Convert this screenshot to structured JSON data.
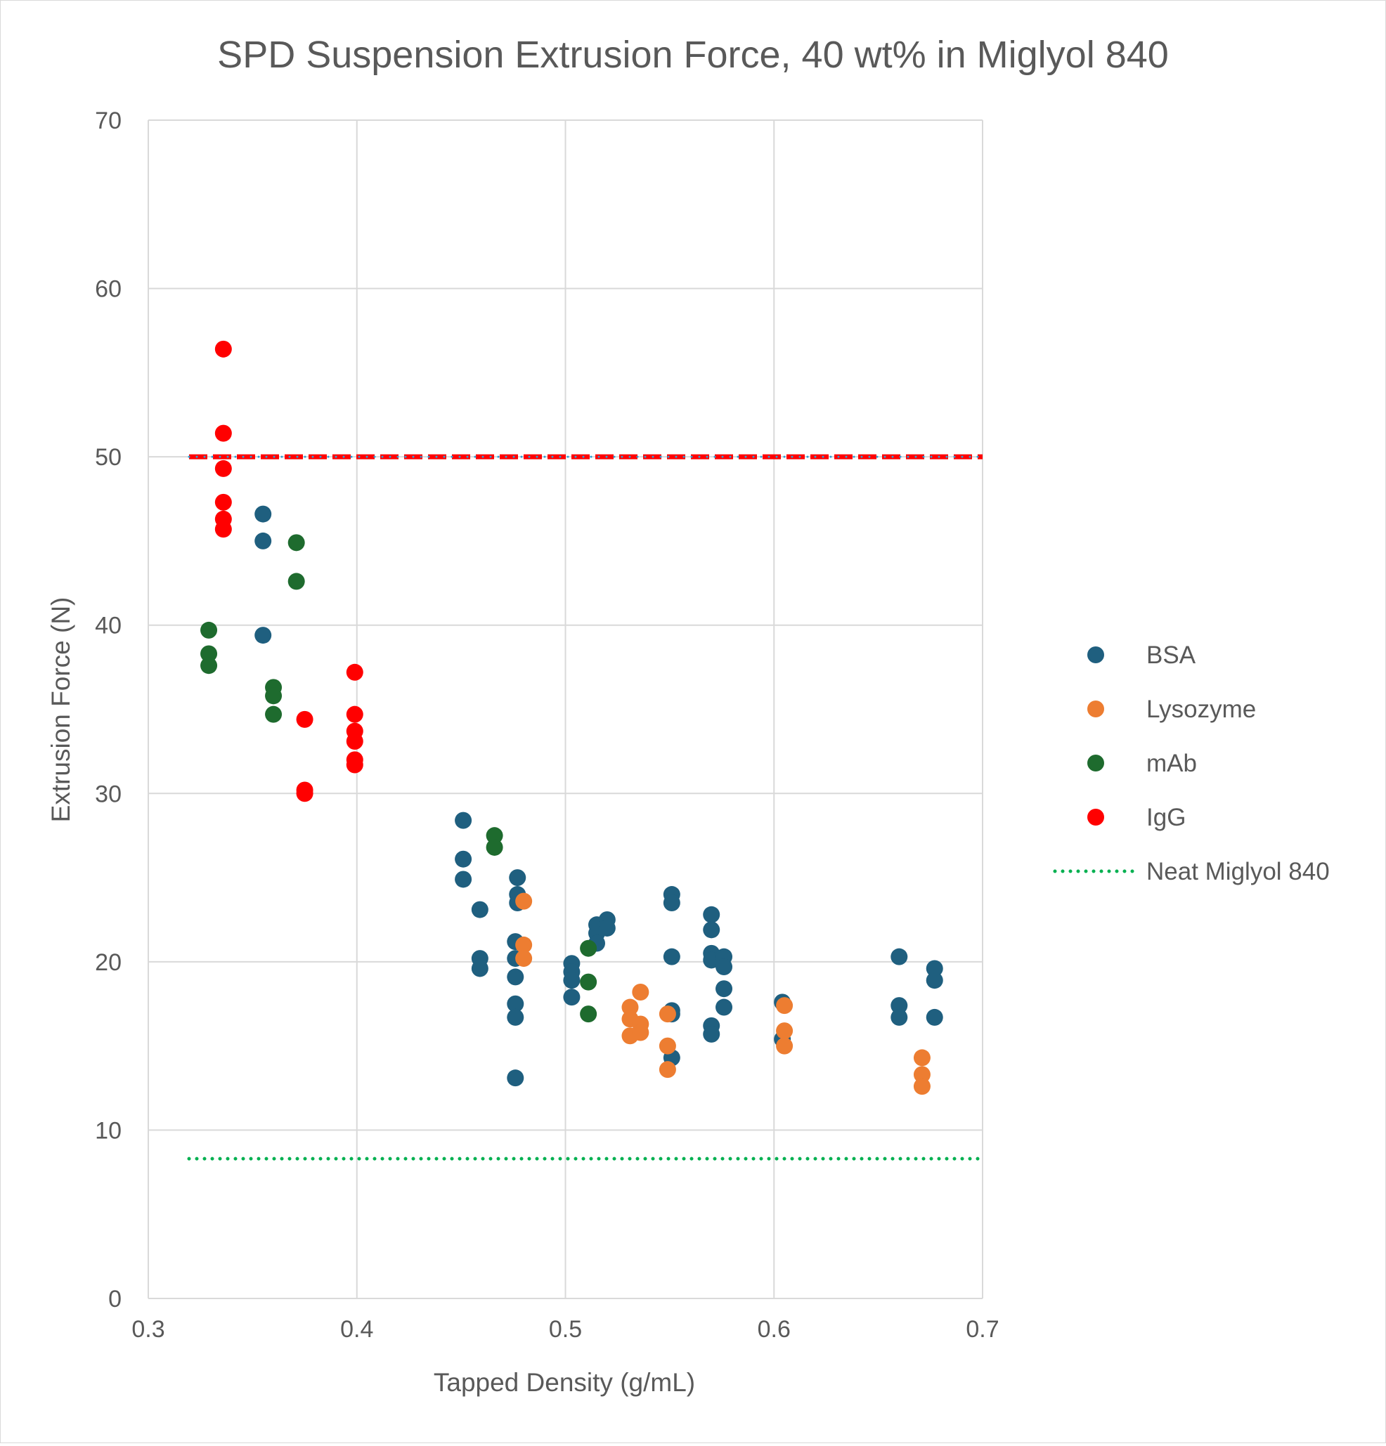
{
  "chart_data": {
    "type": "scatter",
    "title": "SPD Suspension Extrusion Force, 40 wt% in Miglyol 840",
    "xlabel": "Tapped Density (g/mL)",
    "ylabel": "Extrusion Force (N)",
    "xlim": [
      0.3,
      0.7
    ],
    "ylim": [
      0,
      70
    ],
    "xticks": [
      "0.3",
      "0.4",
      "0.5",
      "0.6",
      "0.7"
    ],
    "yticks": [
      "0",
      "10",
      "20",
      "30",
      "40",
      "50",
      "60",
      "70"
    ],
    "grid": true,
    "legend_position": "right",
    "series": [
      {
        "name": "BSA",
        "color": "#1f5f7f",
        "points": [
          [
            0.355,
            46.6
          ],
          [
            0.355,
            45.0
          ],
          [
            0.355,
            39.4
          ],
          [
            0.451,
            28.4
          ],
          [
            0.451,
            26.1
          ],
          [
            0.451,
            24.9
          ],
          [
            0.459,
            23.1
          ],
          [
            0.459,
            20.2
          ],
          [
            0.459,
            19.6
          ],
          [
            0.477,
            25.0
          ],
          [
            0.477,
            24.0
          ],
          [
            0.477,
            23.5
          ],
          [
            0.476,
            21.2
          ],
          [
            0.476,
            20.2
          ],
          [
            0.476,
            19.1
          ],
          [
            0.476,
            17.5
          ],
          [
            0.476,
            16.7
          ],
          [
            0.476,
            13.1
          ],
          [
            0.503,
            19.9
          ],
          [
            0.503,
            19.4
          ],
          [
            0.503,
            18.9
          ],
          [
            0.503,
            17.9
          ],
          [
            0.515,
            22.2
          ],
          [
            0.515,
            21.7
          ],
          [
            0.515,
            21.1
          ],
          [
            0.52,
            22.5
          ],
          [
            0.52,
            22.0
          ],
          [
            0.551,
            24.0
          ],
          [
            0.551,
            23.5
          ],
          [
            0.551,
            20.3
          ],
          [
            0.551,
            17.1
          ],
          [
            0.551,
            16.9
          ],
          [
            0.551,
            14.3
          ],
          [
            0.57,
            22.8
          ],
          [
            0.57,
            21.9
          ],
          [
            0.57,
            20.5
          ],
          [
            0.57,
            20.1
          ],
          [
            0.57,
            16.2
          ],
          [
            0.57,
            15.7
          ],
          [
            0.576,
            20.3
          ],
          [
            0.576,
            19.7
          ],
          [
            0.576,
            18.4
          ],
          [
            0.576,
            17.3
          ],
          [
            0.604,
            17.6
          ],
          [
            0.604,
            15.4
          ],
          [
            0.66,
            20.3
          ],
          [
            0.66,
            17.4
          ],
          [
            0.66,
            16.7
          ],
          [
            0.677,
            19.6
          ],
          [
            0.677,
            18.9
          ],
          [
            0.677,
            16.7
          ]
        ]
      },
      {
        "name": "Lysozyme",
        "color": "#ed7d31",
        "points": [
          [
            0.48,
            23.6
          ],
          [
            0.48,
            21.0
          ],
          [
            0.48,
            20.2
          ],
          [
            0.531,
            17.3
          ],
          [
            0.531,
            16.6
          ],
          [
            0.531,
            15.6
          ],
          [
            0.536,
            18.2
          ],
          [
            0.536,
            16.3
          ],
          [
            0.536,
            15.8
          ],
          [
            0.549,
            16.9
          ],
          [
            0.549,
            15.0
          ],
          [
            0.549,
            13.6
          ],
          [
            0.605,
            17.4
          ],
          [
            0.605,
            15.9
          ],
          [
            0.605,
            15.0
          ],
          [
            0.671,
            14.3
          ],
          [
            0.671,
            13.3
          ],
          [
            0.671,
            12.6
          ]
        ]
      },
      {
        "name": "mAb",
        "color": "#1e6b2e",
        "points": [
          [
            0.329,
            39.7
          ],
          [
            0.329,
            38.3
          ],
          [
            0.329,
            37.6
          ],
          [
            0.36,
            36.3
          ],
          [
            0.36,
            35.8
          ],
          [
            0.36,
            34.7
          ],
          [
            0.371,
            44.9
          ],
          [
            0.371,
            42.6
          ],
          [
            0.466,
            27.5
          ],
          [
            0.466,
            26.8
          ],
          [
            0.511,
            20.8
          ],
          [
            0.511,
            18.8
          ],
          [
            0.511,
            16.9
          ]
        ]
      },
      {
        "name": "IgG",
        "color": "#ff0000",
        "points": [
          [
            0.336,
            56.4
          ],
          [
            0.336,
            51.4
          ],
          [
            0.336,
            49.3
          ],
          [
            0.336,
            47.3
          ],
          [
            0.336,
            46.3
          ],
          [
            0.336,
            45.7
          ],
          [
            0.375,
            34.4
          ],
          [
            0.375,
            30.2
          ],
          [
            0.375,
            30.0
          ],
          [
            0.399,
            37.2
          ],
          [
            0.399,
            34.7
          ],
          [
            0.399,
            33.7
          ],
          [
            0.399,
            33.1
          ],
          [
            0.399,
            32.0
          ],
          [
            0.399,
            31.7
          ]
        ]
      }
    ],
    "reference_lines": [
      {
        "name": "Neat Miglyol 840",
        "y": 8.3,
        "color": "#00b050",
        "style": "dotted",
        "in_legend": true
      },
      {
        "y": 50,
        "color": "#ff0000",
        "style": "dashed",
        "in_legend": false
      },
      {
        "y": 50,
        "color": "#2e9ed6",
        "style": "dotted",
        "in_legend": false
      }
    ]
  }
}
